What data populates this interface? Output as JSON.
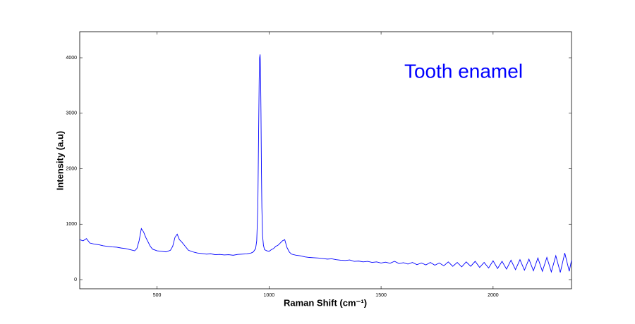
{
  "chart_data": {
    "type": "line",
    "annotation": "Tooth enamel",
    "x_label": "Raman Shift (cm⁻¹)",
    "y_label": "Intensity (a.u)",
    "xlim": [
      155,
      2350
    ],
    "ylim": [
      -165,
      4470
    ],
    "xticks": [
      500,
      1000,
      1500,
      2000
    ],
    "yticks": [
      0,
      1000,
      2000,
      3000,
      4000
    ],
    "x": [
      155,
      170,
      185,
      200,
      220,
      240,
      260,
      280,
      300,
      320,
      340,
      360,
      380,
      400,
      410,
      420,
      430,
      440,
      450,
      460,
      470,
      480,
      500,
      520,
      540,
      560,
      570,
      580,
      590,
      600,
      610,
      620,
      640,
      660,
      680,
      700,
      720,
      740,
      760,
      780,
      800,
      820,
      840,
      860,
      880,
      900,
      920,
      930,
      940,
      945,
      950,
      953,
      956,
      958,
      960,
      962,
      964,
      966,
      968,
      971,
      975,
      980,
      990,
      1000,
      1010,
      1020,
      1030,
      1040,
      1050,
      1060,
      1070,
      1080,
      1090,
      1100,
      1120,
      1140,
      1160,
      1180,
      1200,
      1220,
      1240,
      1260,
      1280,
      1300,
      1320,
      1340,
      1360,
      1380,
      1400,
      1420,
      1440,
      1460,
      1480,
      1500,
      1520,
      1540,
      1560,
      1580,
      1600,
      1620,
      1640,
      1660,
      1680,
      1700,
      1720,
      1740,
      1760,
      1780,
      1800,
      1820,
      1840,
      1860,
      1880,
      1900,
      1920,
      1940,
      1960,
      1980,
      2000,
      2020,
      2040,
      2060,
      2080,
      2100,
      2120,
      2140,
      2160,
      2180,
      2200,
      2220,
      2240,
      2260,
      2280,
      2300,
      2320,
      2340,
      2350
    ],
    "series": [
      {
        "name": "Tooth enamel",
        "color": "#0000ff",
        "values": [
          720,
          700,
          740,
          660,
          640,
          630,
          610,
          600,
          590,
          585,
          570,
          560,
          540,
          520,
          560,
          700,
          920,
          860,
          760,
          680,
          600,
          550,
          520,
          510,
          500,
          530,
          600,
          760,
          820,
          720,
          680,
          630,
          530,
          500,
          480,
          470,
          460,
          465,
          450,
          455,
          445,
          450,
          440,
          455,
          460,
          465,
          480,
          500,
          560,
          700,
          1300,
          2500,
          3600,
          4000,
          4060,
          3800,
          3000,
          2000,
          1300,
          800,
          620,
          540,
          520,
          510,
          540,
          560,
          600,
          620,
          660,
          700,
          720,
          580,
          500,
          460,
          440,
          430,
          410,
          400,
          395,
          390,
          380,
          370,
          375,
          360,
          350,
          345,
          355,
          330,
          335,
          320,
          330,
          310,
          320,
          300,
          315,
          295,
          330,
          290,
          305,
          280,
          310,
          270,
          300,
          265,
          310,
          260,
          300,
          250,
          320,
          240,
          310,
          230,
          320,
          240,
          330,
          220,
          310,
          210,
          340,
          200,
          330,
          190,
          350,
          180,
          360,
          170,
          370,
          160,
          390,
          150,
          400,
          140,
          430,
          130,
          480,
          150,
          350
        ]
      }
    ]
  }
}
